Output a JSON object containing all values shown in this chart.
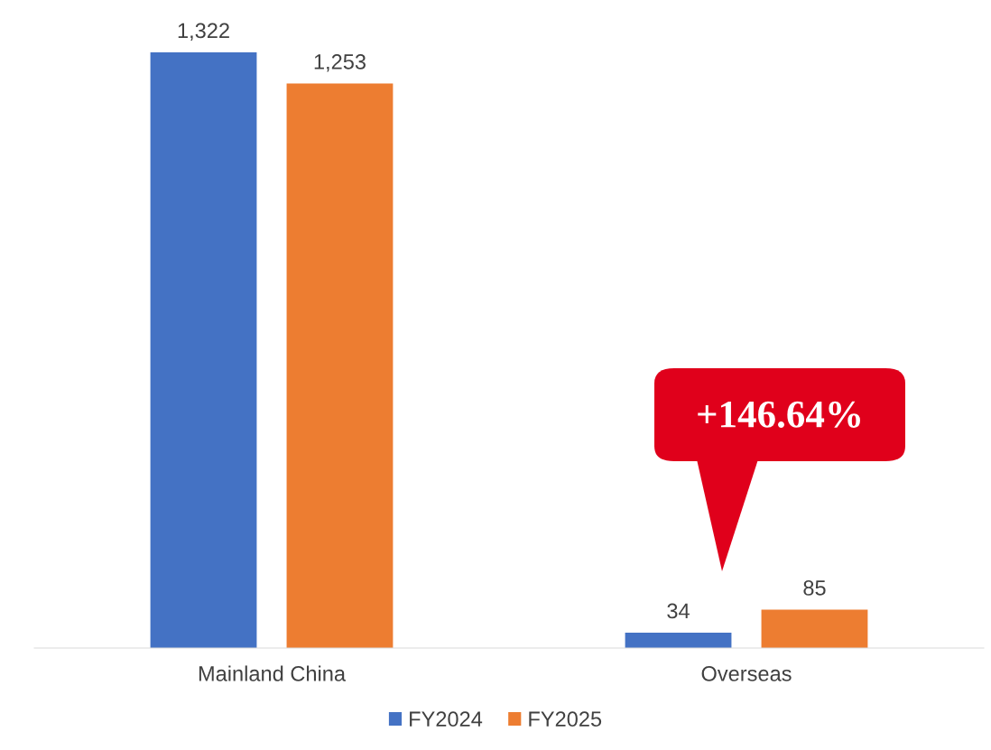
{
  "chart_data": {
    "type": "bar",
    "categories": [
      "Mainland China",
      "Overseas"
    ],
    "series": [
      {
        "name": "FY2024",
        "color": "#4472c4",
        "values": [
          1322,
          34
        ],
        "value_labels": [
          "1,322",
          "34"
        ]
      },
      {
        "name": "FY2025",
        "color": "#ed7d31",
        "values": [
          1253,
          85
        ],
        "value_labels": [
          "1,253",
          "85"
        ]
      }
    ],
    "legend": "bottom",
    "annotations": [
      "+146.64%"
    ]
  }
}
